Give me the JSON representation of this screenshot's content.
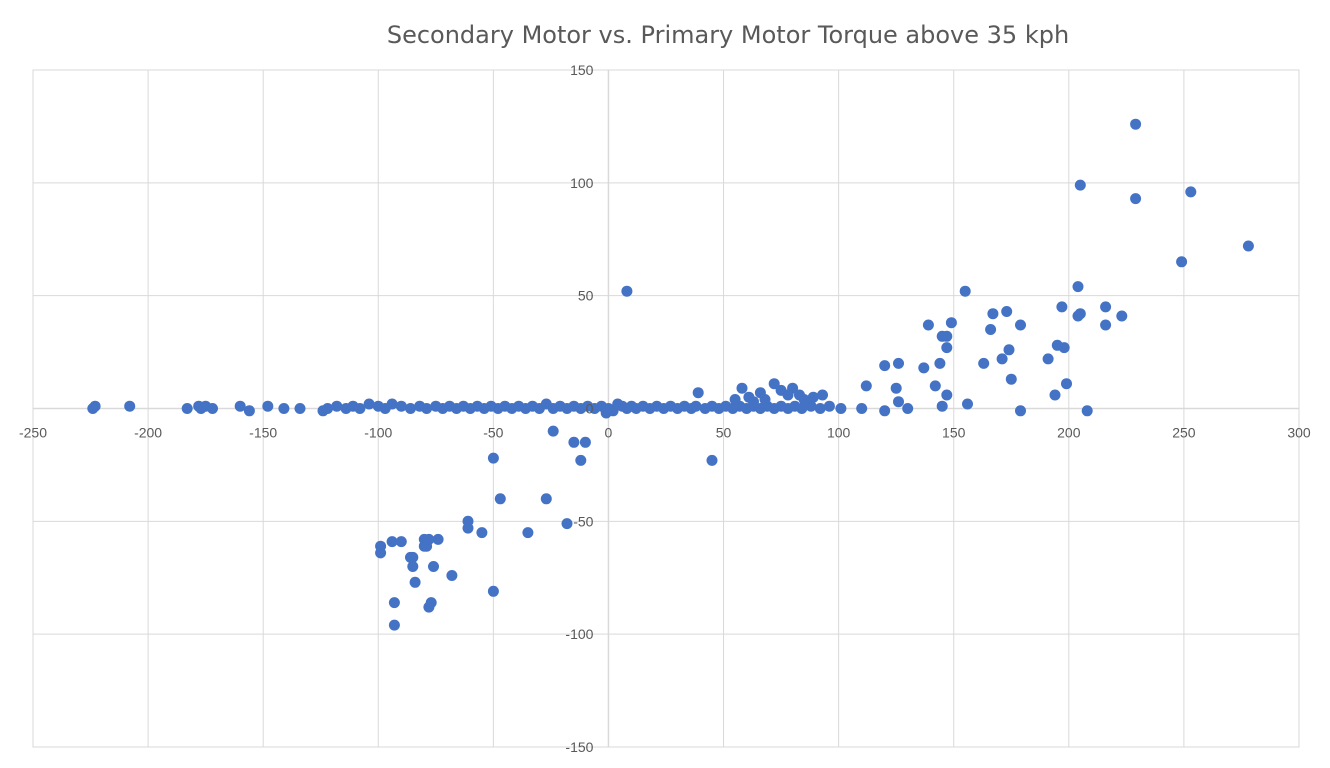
{
  "chart_data": {
    "type": "scatter",
    "title": "Secondary Motor vs. Primary Motor Torque above 35 kph",
    "xlabel": "",
    "ylabel": "",
    "xlim": [
      -250,
      300
    ],
    "ylim": [
      -150,
      150
    ],
    "x_ticks": [
      -250,
      -200,
      -150,
      -100,
      -50,
      0,
      50,
      100,
      150,
      200,
      250,
      300
    ],
    "y_ticks": [
      -150,
      -100,
      -50,
      0,
      50,
      100,
      150
    ],
    "x_tick_labels": [
      "-250",
      "-200",
      "-150",
      "-100",
      "-50",
      "0",
      "50",
      "100",
      "150",
      "200",
      "250",
      "300"
    ],
    "y_tick_labels": [
      "-150",
      "-100",
      "-50",
      "0",
      "50",
      "100",
      "150"
    ],
    "grid": true,
    "marker_color": "#4472C4",
    "series": [
      {
        "points": [
          [
            -224,
            0
          ],
          [
            -223,
            1
          ],
          [
            -208,
            1
          ],
          [
            -183,
            0
          ],
          [
            -178,
            1
          ],
          [
            -177,
            0
          ],
          [
            -175,
            1
          ],
          [
            -172,
            0
          ],
          [
            -160,
            1
          ],
          [
            -156,
            -1
          ],
          [
            -148,
            1
          ],
          [
            -141,
            0
          ],
          [
            -134,
            0
          ],
          [
            -124,
            -1
          ],
          [
            -122,
            0
          ],
          [
            -118,
            1
          ],
          [
            -114,
            0
          ],
          [
            -111,
            1
          ],
          [
            -108,
            0
          ],
          [
            -104,
            2
          ],
          [
            -100,
            1
          ],
          [
            -97,
            0
          ],
          [
            -94,
            2
          ],
          [
            -90,
            1
          ],
          [
            -86,
            0
          ],
          [
            -82,
            1
          ],
          [
            -79,
            0
          ],
          [
            -75,
            1
          ],
          [
            -72,
            0
          ],
          [
            -69,
            1
          ],
          [
            -66,
            0
          ],
          [
            -63,
            1
          ],
          [
            -60,
            0
          ],
          [
            -57,
            1
          ],
          [
            -54,
            0
          ],
          [
            -51,
            1
          ],
          [
            -48,
            0
          ],
          [
            -45,
            1
          ],
          [
            -42,
            0
          ],
          [
            -39,
            1
          ],
          [
            -36,
            0
          ],
          [
            -33,
            1
          ],
          [
            -30,
            0
          ],
          [
            -27,
            2
          ],
          [
            -24,
            0
          ],
          [
            -21,
            1
          ],
          [
            -18,
            0
          ],
          [
            -15,
            1
          ],
          [
            -12,
            0
          ],
          [
            -9,
            1
          ],
          [
            -6,
            0
          ],
          [
            -3,
            1
          ],
          [
            -1,
            -2
          ],
          [
            0,
            0
          ],
          [
            2,
            -1
          ],
          [
            4,
            2
          ],
          [
            6,
            1
          ],
          [
            8,
            0
          ],
          [
            10,
            1
          ],
          [
            12,
            0
          ],
          [
            15,
            1
          ],
          [
            18,
            0
          ],
          [
            21,
            1
          ],
          [
            24,
            0
          ],
          [
            27,
            1
          ],
          [
            30,
            0
          ],
          [
            33,
            1
          ],
          [
            36,
            0
          ],
          [
            38,
            1
          ],
          [
            42,
            0
          ],
          [
            45,
            1
          ],
          [
            48,
            0
          ],
          [
            51,
            1
          ],
          [
            54,
            0
          ],
          [
            57,
            1
          ],
          [
            60,
            0
          ],
          [
            63,
            1
          ],
          [
            66,
            0
          ],
          [
            69,
            1
          ],
          [
            72,
            0
          ],
          [
            75,
            1
          ],
          [
            78,
            0
          ],
          [
            81,
            1
          ],
          [
            84,
            0
          ],
          [
            88,
            1
          ],
          [
            92,
            0
          ],
          [
            96,
            1
          ],
          [
            101,
            0
          ],
          [
            39,
            7
          ],
          [
            55,
            4
          ],
          [
            58,
            9
          ],
          [
            61,
            5
          ],
          [
            63,
            3
          ],
          [
            66,
            7
          ],
          [
            68,
            4
          ],
          [
            72,
            11
          ],
          [
            75,
            8
          ],
          [
            78,
            6
          ],
          [
            80,
            9
          ],
          [
            83,
            6
          ],
          [
            85,
            4
          ],
          [
            89,
            5
          ],
          [
            93,
            6
          ],
          [
            8,
            52
          ],
          [
            -24,
            -10
          ],
          [
            -15,
            -15
          ],
          [
            -12,
            -23
          ],
          [
            -10,
            -15
          ],
          [
            -50,
            -22
          ],
          [
            -47,
            -40
          ],
          [
            -27,
            -40
          ],
          [
            -35,
            -55
          ],
          [
            -18,
            -51
          ],
          [
            45,
            -23
          ],
          [
            -99,
            -61
          ],
          [
            -99,
            -64
          ],
          [
            -94,
            -59
          ],
          [
            -90,
            -59
          ],
          [
            -86,
            -66
          ],
          [
            -85,
            -66
          ],
          [
            -85,
            -70
          ],
          [
            -84,
            -77
          ],
          [
            -80,
            -58
          ],
          [
            -80,
            -61
          ],
          [
            -79,
            -61
          ],
          [
            -78,
            -58
          ],
          [
            -76,
            -70
          ],
          [
            -74,
            -58
          ],
          [
            -68,
            -74
          ],
          [
            -61,
            -50
          ],
          [
            -61,
            -53
          ],
          [
            -55,
            -55
          ],
          [
            -50,
            -81
          ],
          [
            -93,
            -86
          ],
          [
            -78,
            -88
          ],
          [
            -77,
            -86
          ],
          [
            -93,
            -96
          ],
          [
            110,
            0
          ],
          [
            112,
            10
          ],
          [
            120,
            19
          ],
          [
            120,
            -1
          ],
          [
            125,
            9
          ],
          [
            126,
            20
          ],
          [
            126,
            3
          ],
          [
            130,
            0
          ],
          [
            137,
            18
          ],
          [
            139,
            37
          ],
          [
            142,
            10
          ],
          [
            144,
            20
          ],
          [
            145,
            32
          ],
          [
            145,
            1
          ],
          [
            147,
            6
          ],
          [
            147,
            27
          ],
          [
            147,
            32
          ],
          [
            149,
            38
          ],
          [
            155,
            52
          ],
          [
            156,
            2
          ],
          [
            163,
            20
          ],
          [
            166,
            35
          ],
          [
            167,
            42
          ],
          [
            171,
            22
          ],
          [
            173,
            43
          ],
          [
            174,
            26
          ],
          [
            175,
            13
          ],
          [
            179,
            37
          ],
          [
            179,
            -1
          ],
          [
            191,
            22
          ],
          [
            194,
            6
          ],
          [
            195,
            28
          ],
          [
            197,
            45
          ],
          [
            198,
            27
          ],
          [
            199,
            11
          ],
          [
            204,
            54
          ],
          [
            204,
            41
          ],
          [
            205,
            42
          ],
          [
            205,
            99
          ],
          [
            208,
            -1
          ],
          [
            216,
            37
          ],
          [
            216,
            45
          ],
          [
            223,
            41
          ],
          [
            229,
            126
          ],
          [
            229,
            93
          ],
          [
            249,
            65
          ],
          [
            253,
            96
          ],
          [
            278,
            72
          ]
        ]
      }
    ]
  }
}
